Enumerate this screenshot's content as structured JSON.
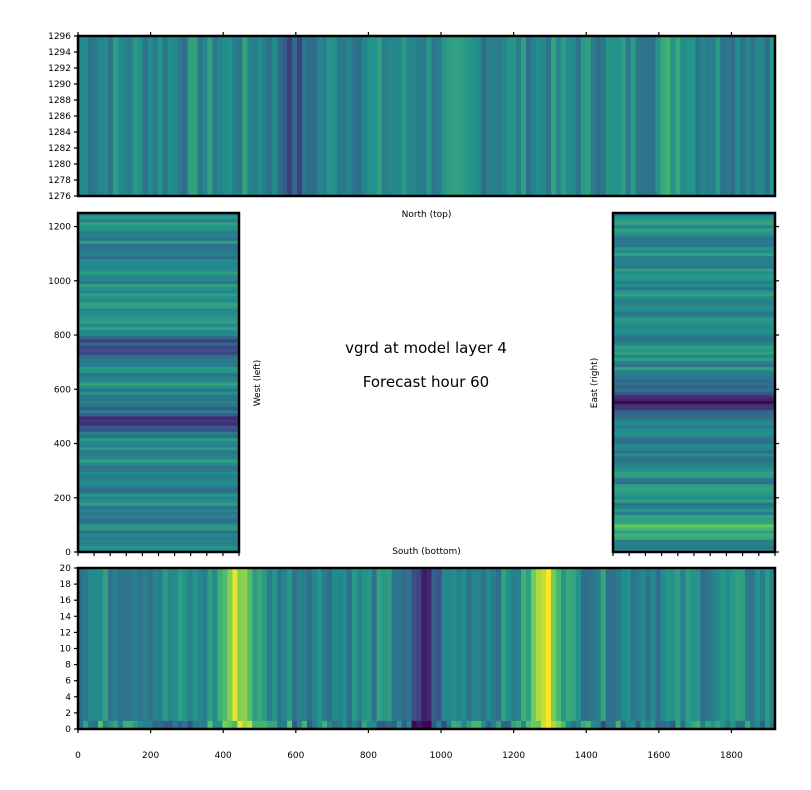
{
  "title_line1": "vgrd at model layer 4",
  "title_line2": "Forecast hour 60",
  "colormap": [
    "#440154",
    "#3b528b",
    "#21918c",
    "#5ec962",
    "#fde725"
  ],
  "chart_data": [
    {
      "type": "heatmap",
      "panel": "top",
      "label": "North (top)",
      "xlim": [
        0,
        1920
      ],
      "ylim": [
        1276,
        1296
      ],
      "x_ticks": [
        0,
        200,
        400,
        600,
        800,
        1000,
        1200,
        1400,
        1600,
        1800
      ],
      "x_tick_labels_visible": false,
      "y_ticks": [
        "1276",
        "1278",
        "1280",
        "1282",
        "1284",
        "1286",
        "1288",
        "1290",
        "1292",
        "1294",
        "1296"
      ],
      "features": [
        {
          "x": 600,
          "level": 0.25
        },
        {
          "x": 1650,
          "level": 0.6
        }
      ]
    },
    {
      "type": "heatmap",
      "panel": "west",
      "label": "West (left)",
      "xlim": [
        0,
        440
      ],
      "ylim": [
        0,
        1250
      ],
      "y_ticks": [
        "0",
        "200",
        "400",
        "600",
        "800",
        "1000",
        "1200"
      ],
      "features": [
        {
          "y": 750,
          "level": 0.2
        },
        {
          "y": 480,
          "level": 0.2
        }
      ]
    },
    {
      "type": "heatmap",
      "panel": "east",
      "label": "East (right)",
      "xlim": [
        0,
        440
      ],
      "ylim": [
        0,
        1250
      ],
      "y_ticks_visible": false,
      "features": [
        {
          "y": 560,
          "level": 0.1
        },
        {
          "y": 90,
          "level": 0.65
        }
      ]
    },
    {
      "type": "heatmap",
      "panel": "bottom",
      "label": "South (bottom)",
      "xlim": [
        0,
        1920
      ],
      "ylim": [
        0,
        20
      ],
      "x_ticks": [
        "0",
        "200",
        "400",
        "600",
        "800",
        "1000",
        "1200",
        "1400",
        "1600",
        "1800"
      ],
      "y_ticks": [
        "0",
        "2",
        "4",
        "6",
        "8",
        "10",
        "12",
        "14",
        "16",
        "18",
        "20"
      ],
      "features": [
        {
          "x": 440,
          "level": 0.9
        },
        {
          "x": 950,
          "level": 0.1
        },
        {
          "x": 1290,
          "level": 0.95
        }
      ]
    }
  ]
}
